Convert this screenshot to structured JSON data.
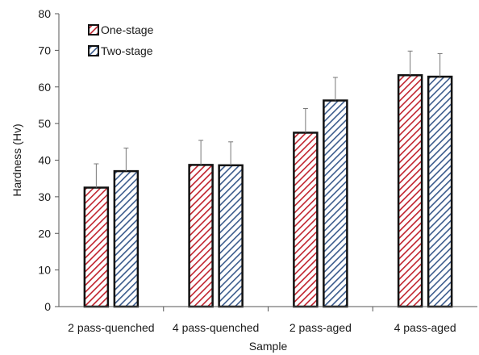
{
  "chart_data": {
    "type": "bar",
    "xlabel": "Sample",
    "ylabel": "Hardness (Hv)",
    "ylim": [
      0,
      80
    ],
    "yticks": [
      0,
      10,
      20,
      30,
      40,
      50,
      60,
      70,
      80
    ],
    "categories": [
      "2 pass-quenched",
      "4 pass-quenched",
      "2 pass-aged",
      "4 pass-aged"
    ],
    "series": [
      {
        "name": "One-stage",
        "values": [
          32.5,
          38.7,
          47.5,
          63.2
        ],
        "errors": [
          6.5,
          6.7,
          6.6,
          6.6
        ],
        "color": "#c0232e",
        "pattern": "diagonal-hatch"
      },
      {
        "name": "Two-stage",
        "values": [
          37.0,
          38.6,
          56.3,
          62.8
        ],
        "errors": [
          6.3,
          6.4,
          6.3,
          6.3
        ],
        "color": "#3b5b8c",
        "pattern": "diagonal-hatch"
      }
    ],
    "legend_position": "top-left",
    "grid": false,
    "error_bars": "upper"
  }
}
